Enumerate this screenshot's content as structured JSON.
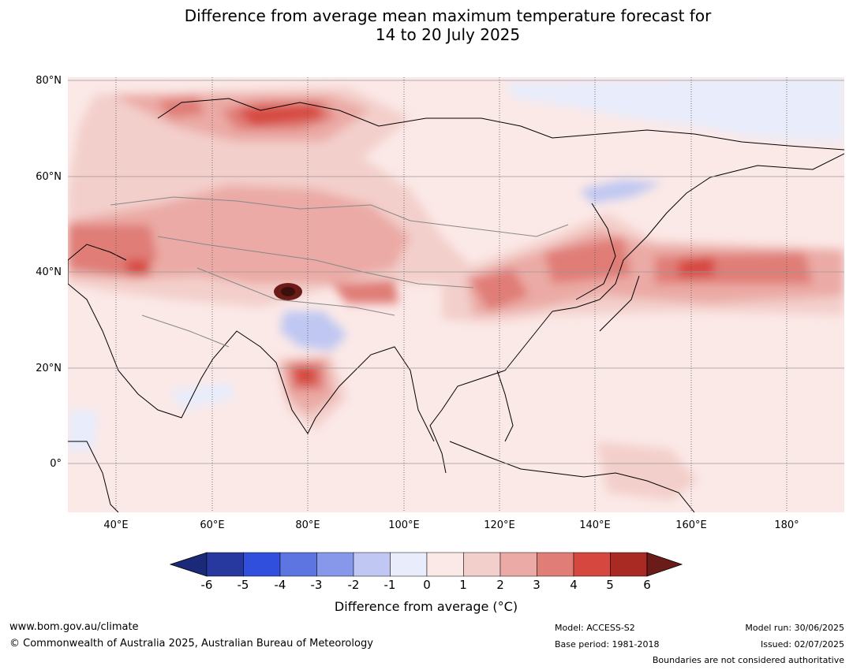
{
  "title": {
    "line1": "Difference from average mean maximum temperature forecast for",
    "line2": "14 to 20 July 2025"
  },
  "map": {
    "lat_labels": [
      "80°N",
      "60°N",
      "40°N",
      "20°N",
      "0°"
    ],
    "lon_labels": [
      "40°E",
      "60°E",
      "80°E",
      "100°E",
      "120°E",
      "140°E",
      "160°E",
      "180°"
    ],
    "lon_range": [
      30,
      192
    ],
    "lat_range": [
      -10,
      81
    ]
  },
  "colorbar": {
    "ticks": [
      "-6",
      "-5",
      "-4",
      "-3",
      "-2",
      "-1",
      "0",
      "1",
      "2",
      "3",
      "4",
      "5",
      "6"
    ],
    "colors": [
      "#27399f",
      "#2f4fdc",
      "#5d75e0",
      "#8797e9",
      "#bfc7f2",
      "#e8ecfb",
      "#fbe9e7",
      "#f3cfcb",
      "#ebaaa5",
      "#e07d77",
      "#d6483f",
      "#a82a23"
    ],
    "under_color": "#1a2a78",
    "over_color": "#6b1c18",
    "label": "Difference from average (°C)"
  },
  "footer": {
    "website": "www.bom.gov.au/climate",
    "copyright": "© Commonwealth of Australia 2025, Australian Bureau of Meteorology",
    "model": "Model: ACCESS-S2",
    "base_period": "Base period: 1981-2018",
    "model_run": "Model run: 30/06/2025",
    "issued": "Issued: 02/07/2025",
    "disclaimer": "Boundaries are not considered authoritative"
  }
}
